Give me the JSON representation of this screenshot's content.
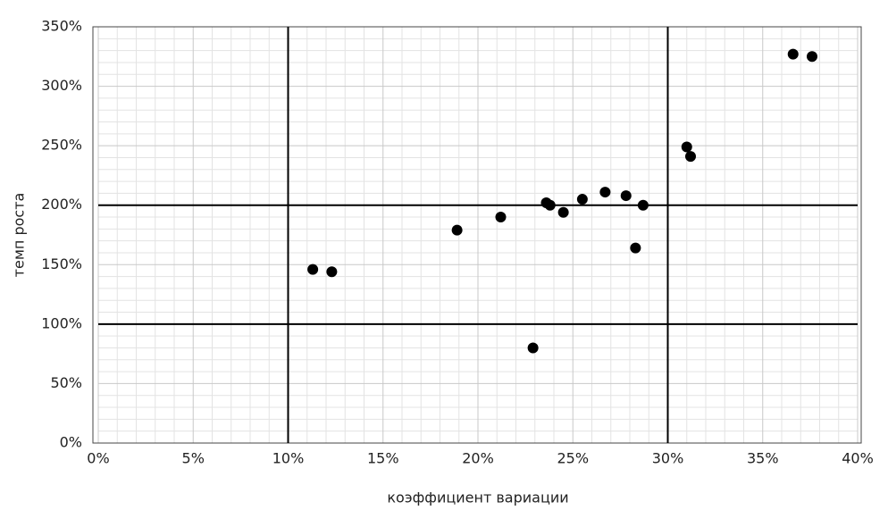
{
  "chart_data": {
    "type": "scatter",
    "x_label": "коэффициент вариации",
    "y_label": "темп роста",
    "x": [
      11.3,
      12.3,
      18.9,
      21.2,
      22.9,
      23.6,
      23.8,
      24.5,
      25.5,
      26.7,
      27.8,
      28.3,
      28.7,
      31.0,
      31.2,
      36.6,
      37.6
    ],
    "values": [
      146,
      144,
      179,
      190,
      80,
      202,
      200,
      194,
      205,
      211,
      208,
      164,
      200,
      249,
      241,
      327,
      325
    ],
    "color": "#000000",
    "xlim": [
      0,
      40
    ],
    "xticks": [
      {
        "value": 0,
        "label": "0%"
      },
      {
        "value": 5,
        "label": "5%"
      },
      {
        "value": 10,
        "label": "10%"
      },
      {
        "value": 15,
        "label": "15%"
      },
      {
        "value": 20,
        "label": "20%"
      },
      {
        "value": 25,
        "label": "25%"
      },
      {
        "value": 30,
        "label": "30%"
      },
      {
        "value": 35,
        "label": "35%"
      },
      {
        "value": 40,
        "label": "40%"
      }
    ],
    "ylim": [
      0,
      350
    ],
    "yticks": [
      {
        "value": 0,
        "label": "0%"
      },
      {
        "value": 50,
        "label": "50%"
      },
      {
        "value": 100,
        "label": "100%"
      },
      {
        "value": 150,
        "label": "150%"
      },
      {
        "value": 200,
        "label": "200%"
      },
      {
        "value": 250,
        "label": "250%"
      },
      {
        "value": 300,
        "label": "300%"
      },
      {
        "value": 350,
        "label": "350%"
      }
    ],
    "grid": true,
    "minor_grid": true,
    "vlines": [
      10,
      30
    ],
    "hlines": [
      100,
      200
    ]
  }
}
